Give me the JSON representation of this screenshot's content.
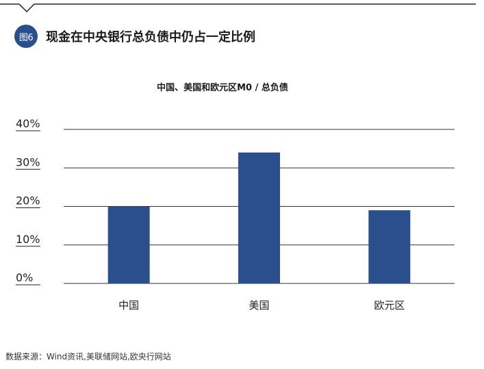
{
  "figure": {
    "badge": "图6",
    "title": "现金在中央银行总负债中仍占一定比例"
  },
  "source": "数据来源：Wind资讯,美联储网站,欧央行网站",
  "colors": {
    "bar": "#2b4e8c",
    "badge": "#2b4e8c",
    "grid": "#333333"
  },
  "chart_data": {
    "type": "bar",
    "title": "中国、美国和欧元区M0 / 总负债",
    "xlabel": "",
    "ylabel": "",
    "categories": [
      "中国",
      "美国",
      "欧元区"
    ],
    "values": [
      20,
      34,
      19
    ],
    "ylim": [
      0,
      40
    ],
    "yticks": [
      0,
      10,
      20,
      30,
      40
    ],
    "ytick_labels": [
      "0%",
      "10%",
      "20%",
      "30%",
      "40%"
    ],
    "grid": true,
    "legend": "none"
  }
}
